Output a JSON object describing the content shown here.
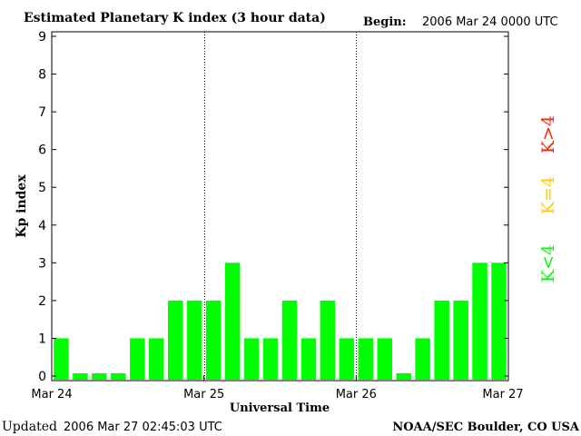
{
  "header": {
    "title": "Estimated Planetary K index (3 hour data)",
    "begin_label": "Begin:",
    "begin_value": "2006 Mar 24 0000 UTC"
  },
  "footer": {
    "updated_label": "Updated",
    "updated_value": "2006 Mar 27 02:45:03 UTC",
    "source": "NOAA/SEC Boulder, CO USA"
  },
  "chart_data": {
    "type": "bar",
    "title": "Estimated Planetary K index (3 hour data)",
    "xlabel": "Universal Time",
    "ylabel": "Kp index",
    "ylim": [
      0,
      9
    ],
    "yticks": [
      "0",
      "1",
      "2",
      "3",
      "4",
      "5",
      "6",
      "7",
      "8",
      "9"
    ],
    "xticks": [
      {
        "label": "Mar 24",
        "period": 0
      },
      {
        "label": "Mar 25",
        "period": 8
      },
      {
        "label": "Mar 26",
        "period": 16
      },
      {
        "label": "Mar 27",
        "period": 24
      }
    ],
    "day_dividers": [
      8,
      16
    ],
    "grid": false,
    "bar_color": "#00ff00",
    "values": [
      1,
      0,
      0,
      0,
      1,
      1,
      2,
      2,
      2,
      3,
      1,
      1,
      2,
      1,
      2,
      1,
      1,
      1,
      0,
      1,
      2,
      2,
      3,
      3
    ],
    "legend": [
      {
        "label": "K<4",
        "color": "#00ff00"
      },
      {
        "label": "K=4",
        "color": "#ffcc00"
      },
      {
        "label": "K>4",
        "color": "#ff2200"
      }
    ]
  }
}
